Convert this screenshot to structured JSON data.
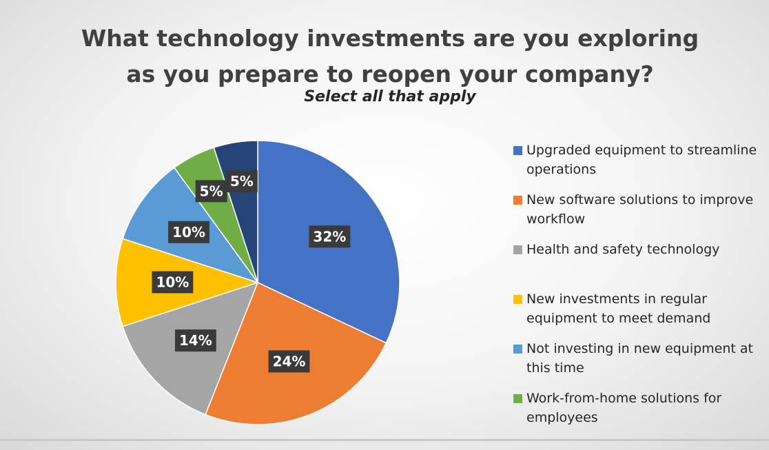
{
  "chart_data": {
    "type": "pie",
    "title": "What technology investments are you exploring as you prepare to reopen your company?",
    "subtitle": "Select all that apply",
    "categories": [
      "Upgraded equipment to streamline operations",
      "New software solutions to improve workflow",
      "Health and safety technology",
      "New investments in regular equipment to meet demand",
      "Not investing in new equipment at this time",
      "Work-from-home solutions for employees",
      null
    ],
    "values": [
      32,
      24,
      14,
      10,
      10,
      5,
      5
    ],
    "value_labels": [
      "32%",
      "24%",
      "14%",
      "10%",
      "10%",
      "5%",
      "5%"
    ],
    "colors": [
      "#4472c4",
      "#ed7d31",
      "#a5a5a5",
      "#ffc000",
      "#5b9bd5",
      "#70ad47",
      "#264478"
    ],
    "legend": "right"
  }
}
